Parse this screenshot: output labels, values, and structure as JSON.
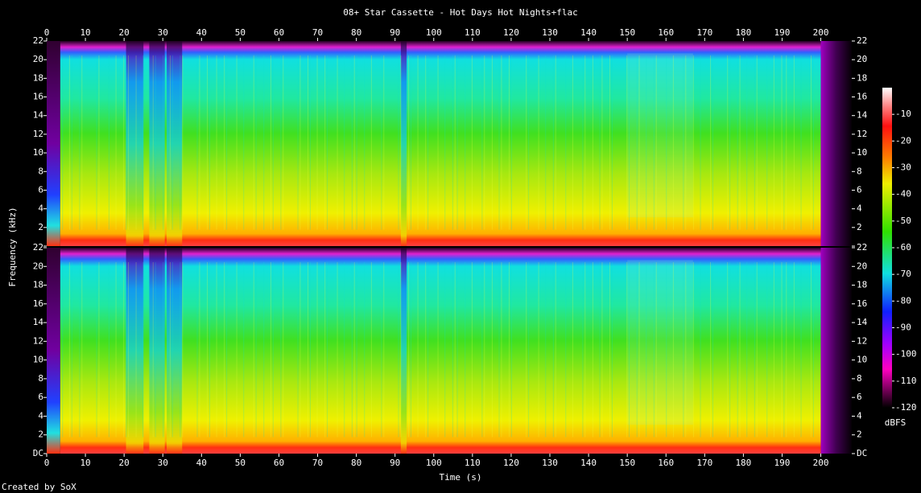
{
  "chart_data": {
    "type": "spectrogram",
    "title": "08+ Star Cassette - Hot Days Hot Nights+flac",
    "xlabel": "Time (s)",
    "ylabel": "Frequency (kHz)",
    "colorbar_label": "dBFS",
    "footer": "Created by SoX",
    "xlim": [
      0,
      208
    ],
    "xticks": [
      0,
      10,
      20,
      30,
      40,
      50,
      60,
      70,
      80,
      90,
      100,
      110,
      120,
      130,
      140,
      150,
      160,
      170,
      180,
      190,
      200
    ],
    "ylim": [
      0,
      22
    ],
    "yticks": [
      {
        "value": 0,
        "label": "DC"
      },
      2,
      4,
      6,
      8,
      10,
      12,
      14,
      16,
      18,
      20,
      22
    ],
    "clim": [
      -120,
      0
    ],
    "cticks": [
      -10,
      -20,
      -30,
      -40,
      -50,
      -60,
      -70,
      -80,
      -90,
      -100,
      -110,
      -120
    ]
  }
}
